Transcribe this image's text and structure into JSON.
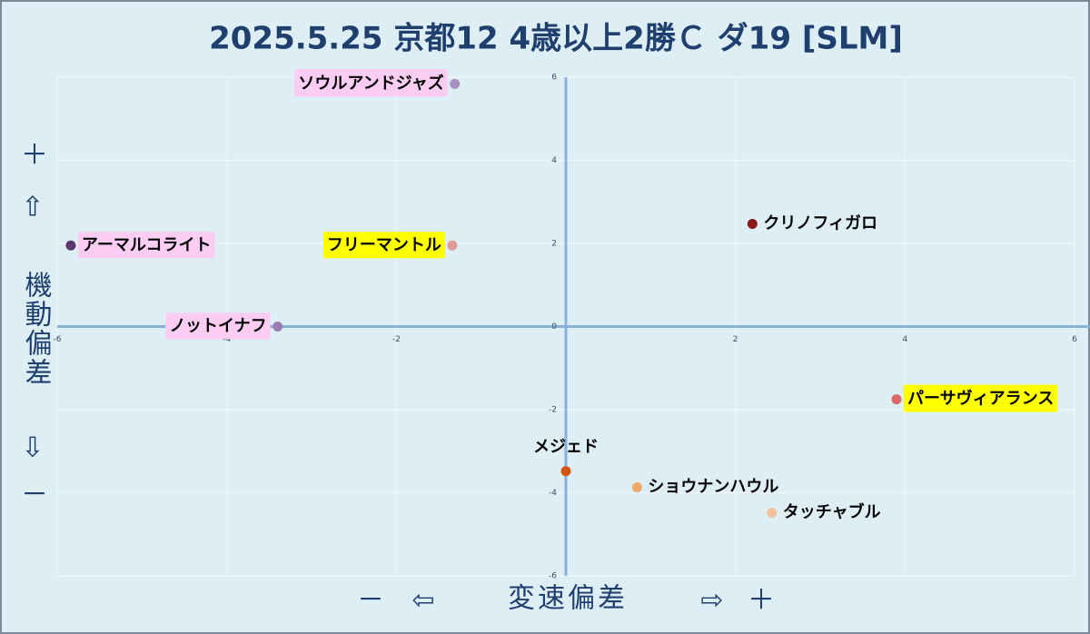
{
  "chart_data": {
    "type": "scatter",
    "title": "2025.5.25 京都12 4歳以上2勝Ｃ ダ19 [SLM]",
    "x_label": {
      "minus": "－",
      "left_arrow": "⇦",
      "text": "変速偏差",
      "right_arrow": "⇨",
      "plus": "＋"
    },
    "y_label": {
      "plus": "＋",
      "up_arrow": "⇧",
      "text": "機動偏差",
      "down_arrow": "⇩",
      "minus": "－"
    },
    "xlim": [
      -6,
      6
    ],
    "ylim": [
      -6,
      6
    ],
    "xticks": [
      -6,
      -4,
      -2,
      0,
      2,
      4,
      6
    ],
    "yticks": [
      -6,
      -4,
      -2,
      0,
      2,
      4,
      6
    ],
    "grid": true,
    "points": [
      {
        "name": "ソウルアンドジャズ",
        "x": -1.31,
        "y": 5.84,
        "color": "#a98fbf",
        "label_background": "#fbcdf3",
        "label_position": "left"
      },
      {
        "name": "アーマルコライト",
        "x": -5.84,
        "y": 1.95,
        "color": "#5a3a6e",
        "label_background": "#fbcdf3",
        "label_position": "right"
      },
      {
        "name": "フリーマントル",
        "x": -1.34,
        "y": 1.95,
        "color": "#e39a9a",
        "label_background": "#ffff00",
        "label_position": "left"
      },
      {
        "name": "ノットイナフ",
        "x": -3.4,
        "y": 0,
        "color": "#9b7db4",
        "label_background": "#fbcdf3",
        "label_position": "left"
      },
      {
        "name": "クリノフィガロ",
        "x": 2.2,
        "y": 2.47,
        "color": "#8b1a1a",
        "label_background": null,
        "label_position": "right"
      },
      {
        "name": "パーサヴィアランス",
        "x": 3.9,
        "y": -1.75,
        "color": "#d9696b",
        "label_background": "#ffff00",
        "label_position": "right"
      },
      {
        "name": "メジェド",
        "x": 0,
        "y": -3.48,
        "color": "#d4560c",
        "label_background": null,
        "label_position": "top"
      },
      {
        "name": "ショウナンハウル",
        "x": 0.84,
        "y": -3.87,
        "color": "#f0a868",
        "label_background": null,
        "label_position": "right"
      },
      {
        "name": "タッチャブル",
        "x": 2.43,
        "y": -4.48,
        "color": "#f2c09a",
        "label_background": null,
        "label_position": "right"
      }
    ]
  }
}
